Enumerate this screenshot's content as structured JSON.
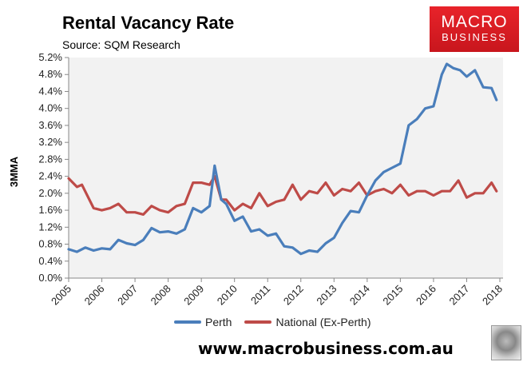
{
  "header": {
    "title": "Rental Vacancy Rate",
    "subtitle": "Source: SQM Research"
  },
  "logo": {
    "line1": "MACRO",
    "line2": "BUSINESS",
    "color": "#e01f26"
  },
  "footer": {
    "url": "www.macrobusiness.com.au"
  },
  "legend": [
    {
      "label": "Perth",
      "color": "#4a7ebb"
    },
    {
      "label": "National (Ex-Perth)",
      "color": "#be4b48"
    }
  ],
  "chart_data": {
    "type": "line",
    "title": "Rental Vacancy Rate",
    "subtitle": "Source: SQM Research",
    "xlabel": "",
    "ylabel": "3MMA",
    "ylim": [
      0,
      5.2
    ],
    "xlim": [
      2005,
      2018
    ],
    "yticks": [
      "0.0%",
      "0.4%",
      "0.8%",
      "1.2%",
      "1.6%",
      "2.0%",
      "2.4%",
      "2.8%",
      "3.2%",
      "3.6%",
      "4.0%",
      "4.4%",
      "4.8%",
      "5.2%"
    ],
    "xticks": [
      "2005",
      "2006",
      "2007",
      "2008",
      "2009",
      "2010",
      "2011",
      "2012",
      "2013",
      "2014",
      "2015",
      "2016",
      "2017",
      "2018"
    ],
    "grid": false,
    "legend_position": "bottom",
    "series": [
      {
        "name": "Perth",
        "color": "#4a7ebb",
        "x": [
          2005.0,
          2005.25,
          2005.5,
          2005.75,
          2006.0,
          2006.25,
          2006.5,
          2006.75,
          2007.0,
          2007.25,
          2007.5,
          2007.75,
          2008.0,
          2008.25,
          2008.5,
          2008.75,
          2009.0,
          2009.25,
          2009.4,
          2009.6,
          2009.75,
          2010.0,
          2010.25,
          2010.5,
          2010.75,
          2011.0,
          2011.25,
          2011.5,
          2011.75,
          2012.0,
          2012.25,
          2012.5,
          2012.75,
          2013.0,
          2013.25,
          2013.5,
          2013.75,
          2014.0,
          2014.25,
          2014.5,
          2014.75,
          2015.0,
          2015.25,
          2015.5,
          2015.75,
          2016.0,
          2016.25,
          2016.4,
          2016.6,
          2016.8,
          2017.0,
          2017.25,
          2017.5,
          2017.75,
          2017.9
        ],
        "values": [
          0.68,
          0.62,
          0.72,
          0.65,
          0.7,
          0.68,
          0.9,
          0.82,
          0.78,
          0.9,
          1.18,
          1.08,
          1.1,
          1.05,
          1.15,
          1.65,
          1.55,
          1.7,
          2.65,
          1.85,
          1.75,
          1.35,
          1.45,
          1.1,
          1.15,
          1.0,
          1.05,
          0.75,
          0.72,
          0.57,
          0.65,
          0.62,
          0.82,
          0.95,
          1.3,
          1.58,
          1.55,
          1.95,
          2.3,
          2.5,
          2.6,
          2.7,
          3.6,
          3.75,
          4.0,
          4.05,
          4.8,
          5.05,
          4.95,
          4.9,
          4.75,
          4.9,
          4.5,
          4.48,
          4.2
        ]
      },
      {
        "name": "National (Ex-Perth)",
        "color": "#be4b48",
        "x": [
          2005.0,
          2005.25,
          2005.4,
          2005.75,
          2006.0,
          2006.25,
          2006.5,
          2006.75,
          2007.0,
          2007.25,
          2007.5,
          2007.75,
          2008.0,
          2008.25,
          2008.5,
          2008.75,
          2009.0,
          2009.25,
          2009.4,
          2009.6,
          2009.75,
          2010.0,
          2010.25,
          2010.5,
          2010.75,
          2011.0,
          2011.25,
          2011.5,
          2011.75,
          2012.0,
          2012.25,
          2012.5,
          2012.75,
          2013.0,
          2013.25,
          2013.5,
          2013.75,
          2014.0,
          2014.25,
          2014.5,
          2014.75,
          2015.0,
          2015.25,
          2015.5,
          2015.75,
          2016.0,
          2016.25,
          2016.5,
          2016.75,
          2017.0,
          2017.25,
          2017.5,
          2017.75,
          2017.9
        ],
        "values": [
          2.35,
          2.15,
          2.2,
          1.65,
          1.6,
          1.65,
          1.75,
          1.55,
          1.55,
          1.5,
          1.7,
          1.6,
          1.55,
          1.7,
          1.75,
          2.25,
          2.25,
          2.2,
          2.4,
          1.85,
          1.85,
          1.6,
          1.75,
          1.65,
          2.0,
          1.7,
          1.8,
          1.85,
          2.2,
          1.85,
          2.05,
          2.0,
          2.25,
          1.95,
          2.1,
          2.05,
          2.25,
          1.95,
          2.05,
          2.1,
          2.0,
          2.2,
          1.95,
          2.05,
          2.05,
          1.95,
          2.05,
          2.05,
          2.3,
          1.9,
          2.0,
          2.0,
          2.25,
          2.05
        ]
      }
    ]
  }
}
